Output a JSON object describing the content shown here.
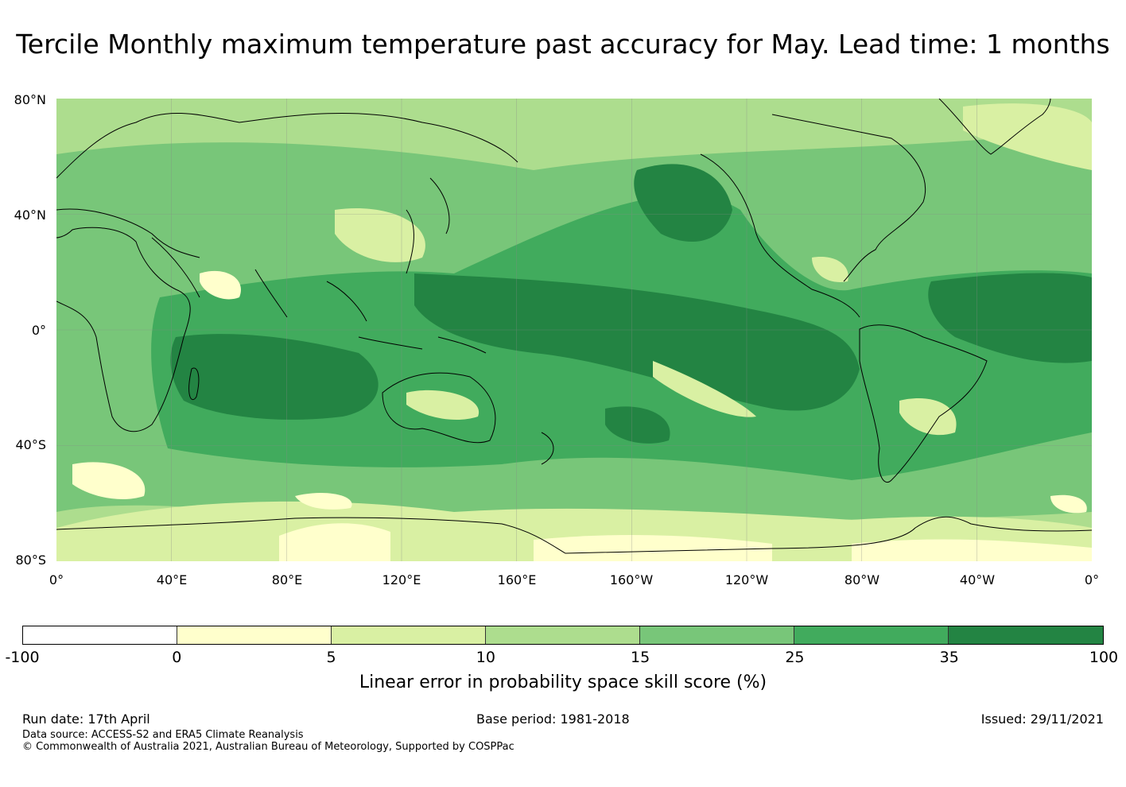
{
  "title": "Tercile Monthly maximum temperature past accuracy for May. Lead time: 1 months",
  "map": {
    "projection": "equirectangular, centered on 180°",
    "lon_range": [
      0,
      360
    ],
    "lat_range": [
      -80,
      80
    ],
    "y_ticks": [
      "80°N",
      "40°N",
      "0°",
      "40°S",
      "80°S"
    ],
    "x_ticks": [
      "0°",
      "40°E",
      "80°E",
      "120°E",
      "160°E",
      "160°W",
      "120°W",
      "80°W",
      "40°W",
      "0°"
    ]
  },
  "colorbar": {
    "bins": [
      {
        "range": "-100 to 0",
        "color": "#ffffff"
      },
      {
        "range": "0 to 5",
        "color": "#ffffcc"
      },
      {
        "range": "5 to 10",
        "color": "#d9f0a3"
      },
      {
        "range": "10 to 15",
        "color": "#addd8e"
      },
      {
        "range": "15 to 25",
        "color": "#78c679"
      },
      {
        "range": "25 to 35",
        "color": "#41ab5d"
      },
      {
        "range": "35 to 100",
        "color": "#238443"
      }
    ],
    "ticks": [
      "-100",
      "0",
      "5",
      "10",
      "15",
      "25",
      "35",
      "100"
    ],
    "label": "Linear error in probability space skill score (%)"
  },
  "footer": {
    "run_date": "Run date: 17th April",
    "base_period": "Base period: 1981-2018",
    "issued": "Issued: 29/11/2021",
    "data_source": "Data source: ACCESS-S2 and ERA5 Climate Reanalysis",
    "copyright": "© Commonwealth of Australia 2021, Australian Bureau of Meteorology, Supported by COSPPac"
  }
}
